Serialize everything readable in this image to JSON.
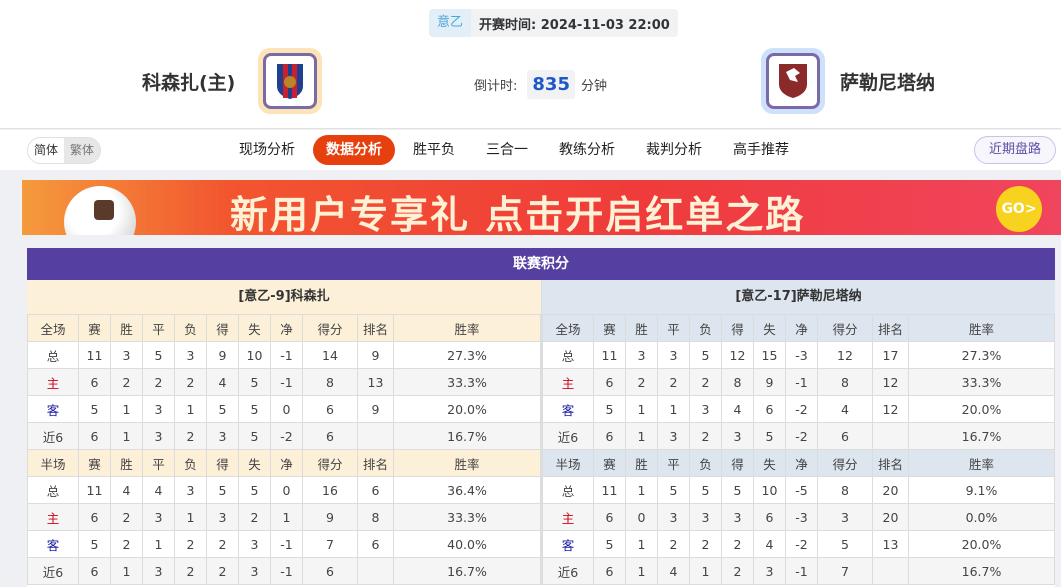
{
  "match": {
    "league": "意乙",
    "kickoff_label": "开赛时间:",
    "kickoff": "2024-11-03 22:00",
    "home": "科森扎(主)",
    "away": "萨勒尼塔纳",
    "countdown_label": "倒计时:",
    "countdown_value": "835",
    "countdown_unit": "分钟"
  },
  "nav": {
    "lang": [
      "简体",
      "繁体"
    ],
    "tabs": [
      "现场分析",
      "数据分析",
      "胜平负",
      "三合一",
      "教练分析",
      "裁判分析",
      "高手推荐"
    ],
    "active_tab": "数据分析",
    "recent": "近期盘路"
  },
  "banner": {
    "text": "新用户专享礼 点击开启红单之路",
    "go": "GO>"
  },
  "standings": {
    "title": "联赛积分",
    "columns_full": [
      "全场",
      "赛",
      "胜",
      "平",
      "负",
      "得",
      "失",
      "净",
      "得分",
      "排名",
      "胜率"
    ],
    "columns_half": [
      "半场",
      "赛",
      "胜",
      "平",
      "负",
      "得",
      "失",
      "净",
      "得分",
      "排名",
      "胜率"
    ],
    "home": {
      "header": "[意乙-9]科森扎",
      "full": [
        [
          "总",
          "11",
          "3",
          "5",
          "3",
          "9",
          "10",
          "-1",
          "14",
          "9",
          "27.3%"
        ],
        [
          "主",
          "6",
          "2",
          "2",
          "2",
          "4",
          "5",
          "-1",
          "8",
          "13",
          "33.3%"
        ],
        [
          "客",
          "5",
          "1",
          "3",
          "1",
          "5",
          "5",
          "0",
          "6",
          "9",
          "20.0%"
        ],
        [
          "近6",
          "6",
          "1",
          "3",
          "2",
          "3",
          "5",
          "-2",
          "6",
          "",
          "16.7%"
        ]
      ],
      "half": [
        [
          "总",
          "11",
          "4",
          "4",
          "3",
          "5",
          "5",
          "0",
          "16",
          "6",
          "36.4%"
        ],
        [
          "主",
          "6",
          "2",
          "3",
          "1",
          "3",
          "2",
          "1",
          "9",
          "8",
          "33.3%"
        ],
        [
          "客",
          "5",
          "2",
          "1",
          "2",
          "2",
          "3",
          "-1",
          "7",
          "6",
          "40.0%"
        ],
        [
          "近6",
          "6",
          "1",
          "3",
          "2",
          "2",
          "3",
          "-1",
          "6",
          "",
          "16.7%"
        ]
      ]
    },
    "away": {
      "header": "[意乙-17]萨勒尼塔纳",
      "full": [
        [
          "总",
          "11",
          "3",
          "3",
          "5",
          "12",
          "15",
          "-3",
          "12",
          "17",
          "27.3%"
        ],
        [
          "主",
          "6",
          "2",
          "2",
          "2",
          "8",
          "9",
          "-1",
          "8",
          "12",
          "33.3%"
        ],
        [
          "客",
          "5",
          "1",
          "1",
          "3",
          "4",
          "6",
          "-2",
          "4",
          "12",
          "20.0%"
        ],
        [
          "近6",
          "6",
          "1",
          "3",
          "2",
          "3",
          "5",
          "-2",
          "6",
          "",
          "16.7%"
        ]
      ],
      "half": [
        [
          "总",
          "11",
          "1",
          "5",
          "5",
          "5",
          "10",
          "-5",
          "8",
          "20",
          "9.1%"
        ],
        [
          "主",
          "6",
          "0",
          "3",
          "3",
          "3",
          "6",
          "-3",
          "3",
          "20",
          "0.0%"
        ],
        [
          "客",
          "5",
          "1",
          "2",
          "2",
          "2",
          "4",
          "-2",
          "5",
          "13",
          "20.0%"
        ],
        [
          "近6",
          "6",
          "1",
          "4",
          "1",
          "2",
          "3",
          "-1",
          "7",
          "",
          "16.7%"
        ]
      ]
    }
  }
}
